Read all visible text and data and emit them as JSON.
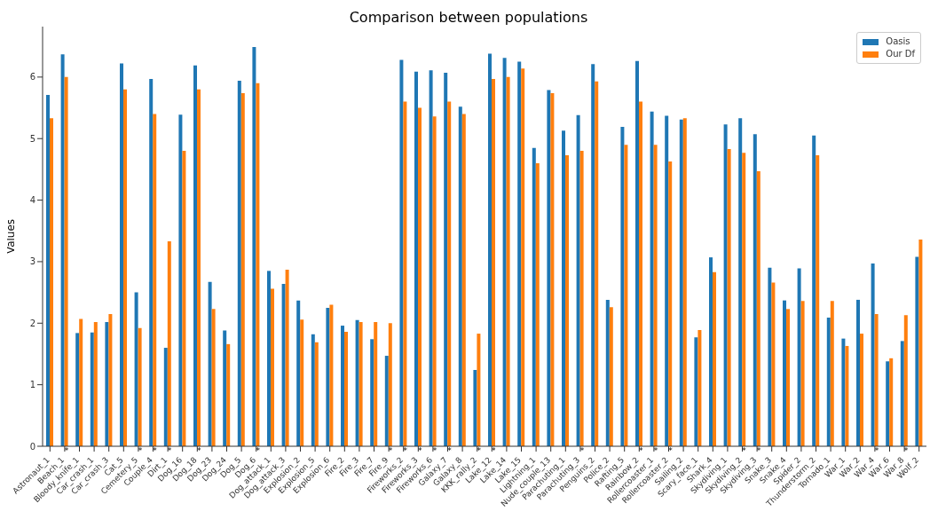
{
  "chart_data": {
    "type": "bar",
    "title": "Comparison between populations",
    "ylabel": "Values",
    "categories": [
      "Astronaut_1",
      "Beach_1",
      "Bloody_knife_1",
      "Car_crash_1",
      "Car_crash_3",
      "Cat_5",
      "Cemetery_5",
      "Couple_4",
      "Dirt_1",
      "Dog_16",
      "Dog_18",
      "Dog_23",
      "Dog_24",
      "Dog_5",
      "Dog_6",
      "Dog_attack_1",
      "Dog_attack_3",
      "Explosion_2",
      "Explosion_5",
      "Explosion_6",
      "Fire_2",
      "Fire_3",
      "Fire_7",
      "Fire_9",
      "Fireworks_2",
      "Fireworks_3",
      "Fireworks_6",
      "Galaxy_7",
      "Galaxy_8",
      "KKK_rally_2",
      "Lake_12",
      "Lake_14",
      "Lake_15",
      "Lightning_1",
      "Nude_couple_13",
      "Parachuting_1",
      "Parachuting_3",
      "Penguins_2",
      "Police_2",
      "Rafting_5",
      "Rainbow_2",
      "Rollercoaster_1",
      "Rollercoaster_2",
      "Sailing_2",
      "Scary_face_1",
      "Shark_4",
      "Skydiving_1",
      "Skydiving_2",
      "Skydiving_3",
      "Snake_3",
      "Snake_4",
      "Spider_2",
      "Thunderstorm_2",
      "Tornado_1",
      "War_1",
      "War_2",
      "War_4",
      "War_6",
      "War_8",
      "Wolf_2"
    ],
    "series": [
      {
        "name": "Oasis",
        "color": "#1f77b4",
        "values": [
          5.71,
          6.37,
          1.84,
          1.85,
          2.02,
          6.22,
          2.5,
          5.97,
          1.6,
          5.39,
          6.19,
          2.67,
          1.88,
          5.94,
          6.49,
          2.85,
          2.64,
          2.37,
          1.82,
          2.25,
          1.96,
          2.05,
          1.74,
          1.47,
          6.28,
          6.09,
          6.11,
          6.07,
          5.52,
          1.24,
          6.38,
          6.31,
          6.25,
          4.85,
          5.79,
          5.13,
          5.38,
          6.21,
          2.38,
          5.19,
          6.26,
          5.44,
          5.37,
          5.31,
          1.77,
          3.07,
          5.23,
          5.33,
          5.07,
          2.9,
          2.37,
          2.89,
          5.05,
          2.09,
          1.75,
          2.38,
          2.97,
          1.38,
          1.71,
          3.08
        ]
      },
      {
        "name": "Our Df",
        "color": "#ff7f0e",
        "values": [
          5.33,
          6.0,
          2.07,
          2.02,
          2.15,
          5.8,
          1.92,
          5.4,
          3.33,
          4.8,
          5.8,
          2.23,
          1.66,
          5.74,
          5.9,
          2.56,
          2.87,
          2.06,
          1.69,
          2.3,
          1.86,
          2.02,
          2.02,
          2.0,
          5.6,
          5.5,
          5.36,
          5.6,
          5.4,
          1.83,
          5.97,
          6.0,
          6.14,
          4.6,
          5.74,
          4.73,
          4.8,
          5.93,
          2.26,
          4.9,
          5.6,
          4.9,
          4.63,
          5.33,
          1.89,
          2.83,
          4.83,
          4.77,
          4.47,
          2.66,
          2.23,
          2.36,
          4.73,
          2.36,
          1.63,
          1.83,
          2.15,
          1.43,
          2.13,
          3.36
        ]
      }
    ],
    "ylim": [
      0,
      6.82
    ],
    "yticks": [
      0,
      1,
      2,
      3,
      4,
      5,
      6
    ],
    "grid": false,
    "legend": "top right",
    "annotations": [
      {
        "text": "*",
        "x": "Beach_1",
        "y": 0
      },
      {
        "text": "*",
        "x": "Cemetery_5",
        "y": 0
      },
      {
        "text": "*",
        "x": "Couple_4",
        "y": 0
      },
      {
        "text": "*",
        "x": "Dirt_1",
        "y": 0
      },
      {
        "text": "*",
        "x": "Dog_18",
        "y": 0
      },
      {
        "text": "*",
        "x": "Dog_6",
        "y": 0
      },
      {
        "text": "*",
        "x": "Fire_9",
        "y": 0
      },
      {
        "text": "*",
        "x": "Fireworks_2",
        "y": 0
      },
      {
        "text": "*",
        "x": "Fireworks_3",
        "y": 0
      },
      {
        "text": "*",
        "x": "Fireworks_6",
        "y": 0
      },
      {
        "text": "*",
        "x": "Galaxy_7",
        "y": 0
      },
      {
        "text": "*",
        "x": "KKK_rally_2",
        "y": 0
      },
      {
        "text": "*",
        "x": "Lake_12",
        "y": 0
      },
      {
        "text": "*",
        "x": "Parachuting_3",
        "y": 0
      },
      {
        "text": "*",
        "x": "Rainbow_2",
        "y": 0
      },
      {
        "text": "*",
        "x": "Rollercoaster_1",
        "y": 0
      },
      {
        "text": "*",
        "x": "Rollercoaster_2",
        "y": 0
      },
      {
        "text": "*",
        "x": "Skydiving_2",
        "y": 0
      },
      {
        "text": "*",
        "x": "Skydiving_3",
        "y": 0
      },
      {
        "text": "*",
        "x": "War_4",
        "y": 0
      },
      {
        "text": "*",
        "x": "War_8",
        "y": 0
      }
    ]
  }
}
